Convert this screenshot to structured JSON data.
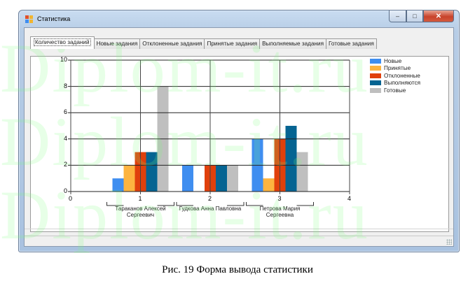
{
  "window": {
    "title": "Статистика",
    "controls": {
      "minimize": "minimize",
      "maximize": "maximize",
      "close": "close"
    }
  },
  "tabs": [
    {
      "label": "Количество заданий",
      "active": true
    },
    {
      "label": "Новые задания",
      "active": false
    },
    {
      "label": "Отклоненные задания",
      "active": false
    },
    {
      "label": "Принятые задания",
      "active": false
    },
    {
      "label": "Выполняемые задания",
      "active": false
    },
    {
      "label": "Готовые задания",
      "active": false
    }
  ],
  "caption": "Рис.  19 Форма вывода статистики",
  "watermark": "Diplom-it.ru",
  "chart_data": {
    "type": "bar",
    "title": "",
    "xlabel": "",
    "ylabel": "",
    "x_ticks": [
      "0",
      "1",
      "2",
      "3",
      "4"
    ],
    "y_ticks": [
      "0",
      "2",
      "4",
      "6",
      "8",
      "10"
    ],
    "xlim": [
      0,
      4
    ],
    "ylim": [
      0,
      10
    ],
    "grid": true,
    "legend_position": "right",
    "categories": [
      "Тараканов Алексей Сергеевич",
      "Гудкова Анна Павловна",
      "Петрова Мария Сергеевна"
    ],
    "category_x": [
      1,
      2,
      3
    ],
    "series": [
      {
        "name": "Новые",
        "color": "#3f8ef0",
        "values": [
          1,
          2,
          4
        ]
      },
      {
        "name": "Принятые",
        "color": "#fdb440",
        "values": [
          2,
          0,
          1
        ]
      },
      {
        "name": "Отклоненные",
        "color": "#e0400c",
        "values": [
          3,
          2,
          4
        ]
      },
      {
        "name": "Выполняются",
        "color": "#056492",
        "values": [
          3,
          2,
          5
        ]
      },
      {
        "name": "Готовые",
        "color": "#bfbfbf",
        "values": [
          8,
          2,
          3
        ]
      }
    ]
  }
}
